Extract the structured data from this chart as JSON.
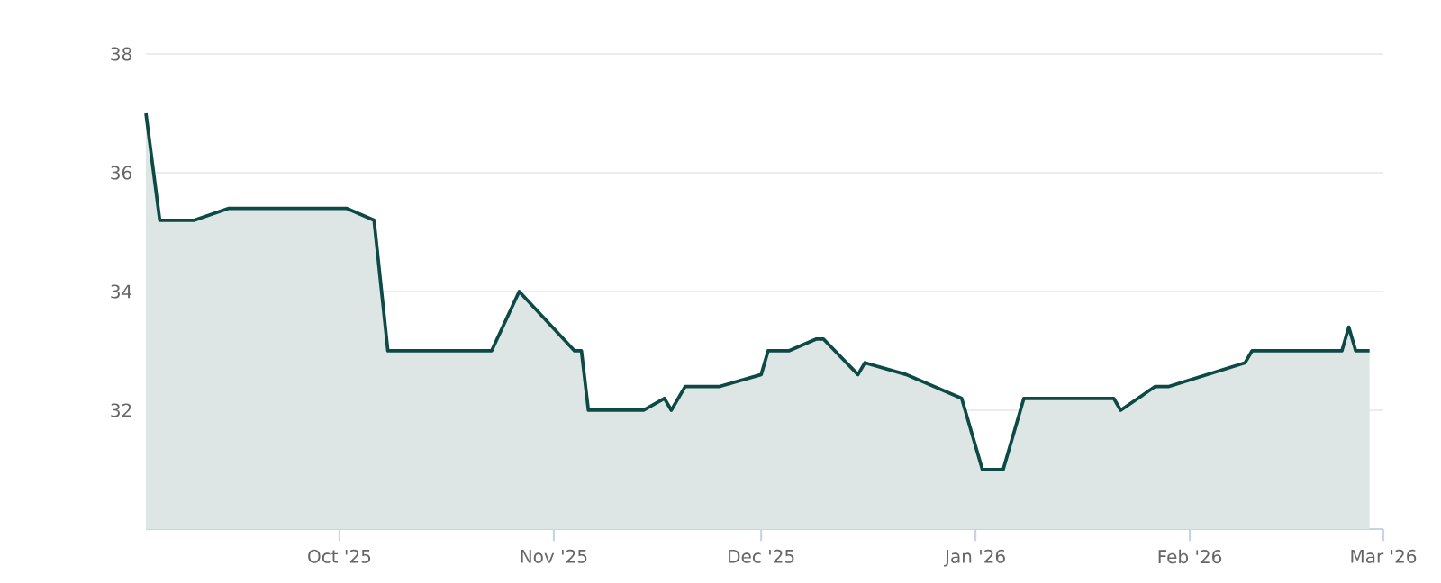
{
  "chart_data": {
    "type": "area",
    "color": "#0d4a45",
    "x": [
      "2025-09-03",
      "2025-09-05",
      "2025-09-10",
      "2025-09-15",
      "2025-10-02",
      "2025-10-06",
      "2025-10-08",
      "2025-10-23",
      "2025-10-27",
      "2025-11-04",
      "2025-11-05",
      "2025-11-06",
      "2025-11-14",
      "2025-11-17",
      "2025-11-18",
      "2025-11-20",
      "2025-11-25",
      "2025-12-01",
      "2025-12-02",
      "2025-12-05",
      "2025-12-09",
      "2025-12-10",
      "2025-12-15",
      "2025-12-16",
      "2025-12-22",
      "2025-12-30",
      "2026-01-02",
      "2026-01-05",
      "2026-01-08",
      "2026-01-21",
      "2026-01-22",
      "2026-01-27",
      "2026-01-29",
      "2026-02-09",
      "2026-02-10",
      "2026-02-23",
      "2026-02-24",
      "2026-02-25",
      "2026-02-27"
    ],
    "values": [
      37.0,
      35.2,
      35.2,
      35.4,
      35.4,
      35.2,
      33.0,
      33.0,
      34.0,
      33.0,
      33.0,
      32.0,
      32.0,
      32.2,
      32.0,
      32.4,
      32.4,
      32.6,
      33.0,
      33.0,
      33.2,
      33.2,
      32.6,
      32.8,
      32.6,
      32.2,
      31.0,
      31.0,
      32.2,
      32.2,
      32.0,
      32.4,
      32.4,
      32.8,
      33.0,
      33.0,
      33.4,
      33.0,
      33.0
    ],
    "xlim": [
      "2025-09-03",
      "2026-03-01"
    ],
    "ylim": [
      30,
      38
    ],
    "xticks": [
      {
        "value": "2025-10-01",
        "label": "Oct '25"
      },
      {
        "value": "2025-11-01",
        "label": "Nov '25"
      },
      {
        "value": "2025-12-01",
        "label": "Dec '25"
      },
      {
        "value": "2026-01-01",
        "label": "Jan '26"
      },
      {
        "value": "2026-02-01",
        "label": "Feb '26"
      },
      {
        "value": "2026-03-01",
        "label": "Mar '26"
      }
    ],
    "yticks": [
      32,
      34,
      36,
      38
    ],
    "grid": "y"
  }
}
